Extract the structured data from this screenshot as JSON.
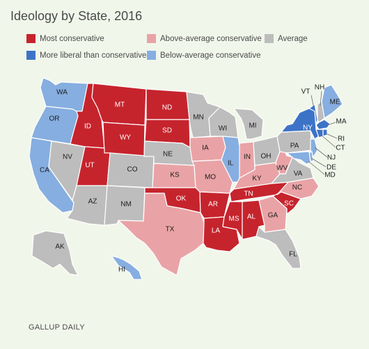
{
  "title": "Ideology by State, 2016",
  "source": "GALLUP DAILY",
  "colors": {
    "most_conservative": "#c6242d",
    "above_average_conservative": "#e9a3a6",
    "average": "#bdbdbd",
    "below_average_conservative": "#86aee0",
    "more_liberal": "#3d73c7",
    "background": "#f1f6ea"
  },
  "legend": {
    "most_conservative": "Most conservative",
    "above_average_conservative": "Above-average conservative",
    "average": "Average",
    "more_liberal": "More liberal than conservative",
    "below_average_conservative": "Below-average conservative"
  },
  "states": {
    "WA": "WA",
    "OR": "OR",
    "CA": "CA",
    "NV": "NV",
    "ID": "ID",
    "MT": "MT",
    "WY": "WY",
    "UT": "UT",
    "AZ": "AZ",
    "CO": "CO",
    "NM": "NM",
    "ND": "ND",
    "SD": "SD",
    "NE": "NE",
    "KS": "KS",
    "OK": "OK",
    "TX": "TX",
    "MN": "MN",
    "IA": "IA",
    "MO": "MO",
    "AR": "AR",
    "LA": "LA",
    "WI": "WI",
    "IL": "IL",
    "MI": "MI",
    "IN": "IN",
    "OH": "OH",
    "KY": "KY",
    "TN": "TN",
    "MS": "MS",
    "AL": "AL",
    "GA": "GA",
    "FL": "FL",
    "SC": "SC",
    "NC": "NC",
    "VA": "VA",
    "WV": "WV",
    "PA": "PA",
    "NY": "NY",
    "VT": "VT",
    "NH": "NH",
    "ME": "ME",
    "MA": "MA",
    "RI": "RI",
    "CT": "CT",
    "NJ": "NJ",
    "DE": "DE",
    "MD": "MD",
    "AK": "AK",
    "HI": "HI"
  },
  "ideology": {
    "most_conservative": [
      "ID",
      "MT",
      "WY",
      "UT",
      "ND",
      "SD",
      "OK",
      "AR",
      "LA",
      "TN",
      "MS",
      "AL",
      "SC"
    ],
    "above_average_conservative": [
      "IA",
      "KS",
      "MO",
      "TX",
      "IN",
      "KY",
      "WV",
      "GA",
      "NC"
    ],
    "average": [
      "NV",
      "AZ",
      "CO",
      "NM",
      "NE",
      "MN",
      "WI",
      "MI",
      "OH",
      "PA",
      "VA",
      "FL",
      "NH",
      "AK"
    ],
    "below_average_conservative": [
      "WA",
      "OR",
      "CA",
      "IL",
      "ME",
      "NJ",
      "DE",
      "MD",
      "HI"
    ],
    "more_liberal": [
      "NY",
      "VT",
      "MA",
      "RI",
      "CT"
    ]
  }
}
